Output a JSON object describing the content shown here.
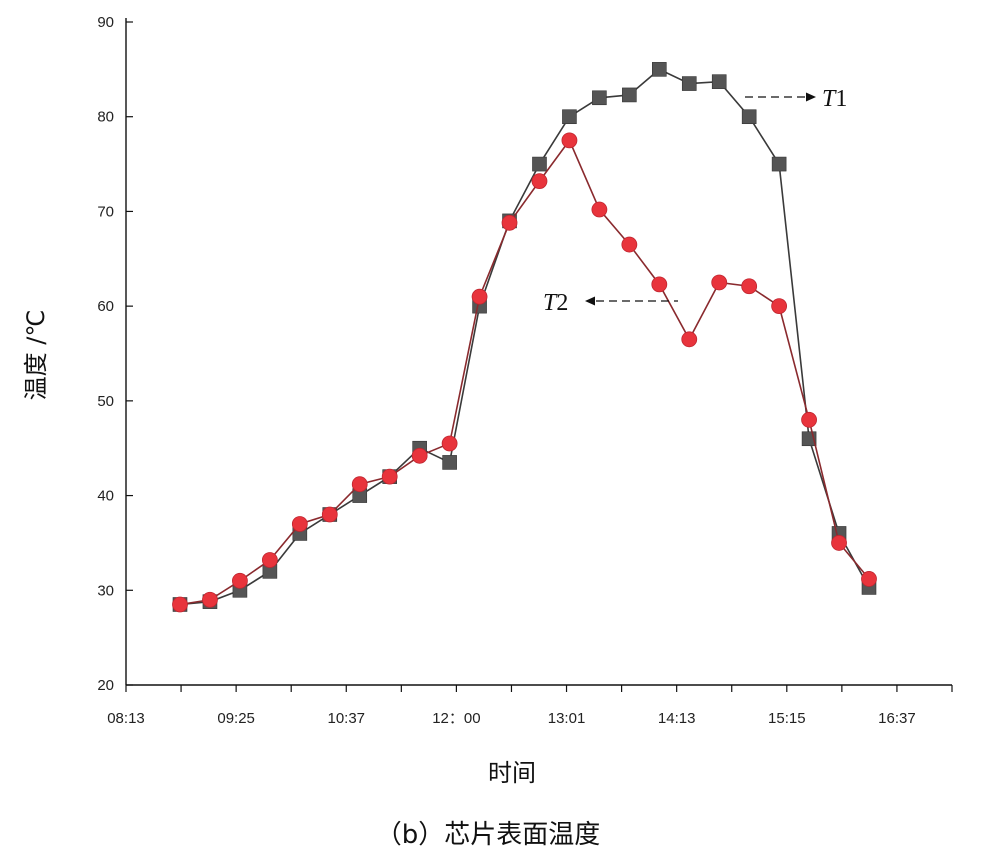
{
  "chart_data": {
    "type": "line",
    "caption": "（b）芯片表面温度",
    "xlabel": "时间",
    "ylabel": "温度 /℃",
    "ylim": [
      20,
      90
    ],
    "yticks": [
      20,
      30,
      40,
      50,
      60,
      70,
      80,
      90
    ],
    "x_tick_labels": [
      "08:13",
      "09:25",
      "10:37",
      "12：00",
      "13:01",
      "14:13",
      "15:15",
      "16:37"
    ],
    "grid": false,
    "legend": "none",
    "series": [
      {
        "name": "T1",
        "color": "#555555",
        "marker": "square",
        "values": [
          28.5,
          28.8,
          30,
          32,
          36,
          38,
          40,
          42,
          45,
          43.5,
          60,
          69,
          75,
          80,
          82,
          82.3,
          85,
          83.5,
          83.7,
          80,
          75,
          46,
          36,
          30.3
        ]
      },
      {
        "name": "T2",
        "color": "#e8343c",
        "marker": "circle",
        "values": [
          28.5,
          29,
          31,
          33.2,
          37,
          38,
          41.2,
          42,
          44.2,
          45.5,
          61,
          68.8,
          73.2,
          77.5,
          70.2,
          66.5,
          62.3,
          56.5,
          62.5,
          62.1,
          60,
          48,
          35,
          31.2
        ]
      }
    ]
  }
}
